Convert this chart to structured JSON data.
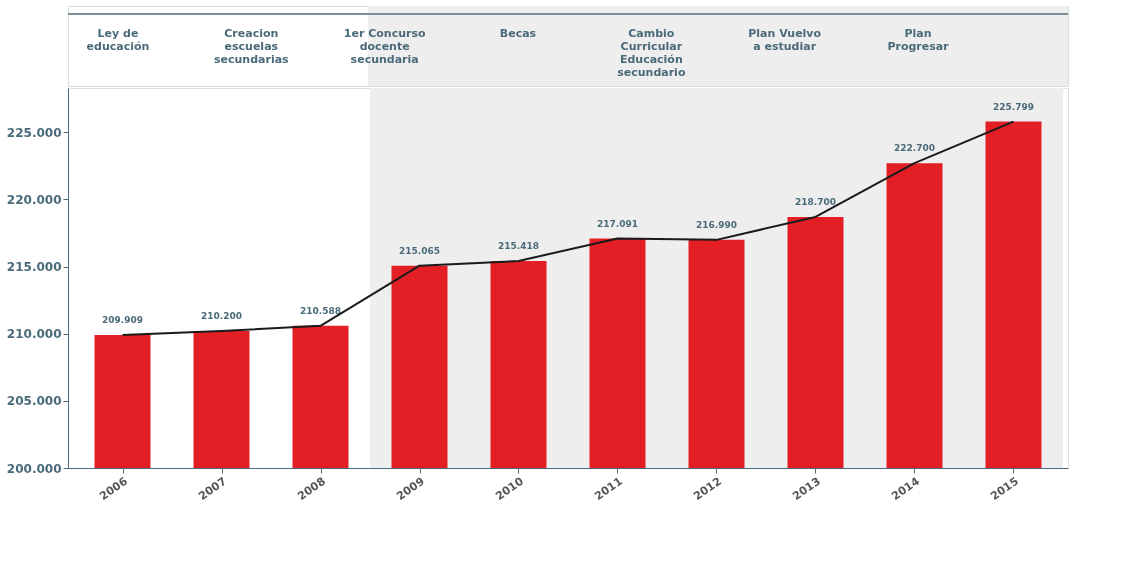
{
  "chart_data": {
    "type": "bar",
    "categories": [
      "2006",
      "2007",
      "2008",
      "2009",
      "2010",
      "2011",
      "2012",
      "2013",
      "2014",
      "2015"
    ],
    "series": [
      {
        "color": "#e31e24",
        "values": [
          209909,
          210200,
          210588,
          215065,
          215418,
          217091,
          216990,
          218700,
          222700,
          225799
        ],
        "value_labels": [
          "209.909",
          "210.200",
          "210.588",
          "215.065",
          "215.418",
          "217.091",
          "216.990",
          "218.700",
          "222.700",
          "225.799"
        ]
      },
      {
        "type": "line",
        "color": "#1a1a1a",
        "values": [
          209909,
          210200,
          210588,
          215065,
          215418,
          217091,
          216990,
          218700,
          222700,
          225799
        ]
      }
    ],
    "ylim": [
      200000,
      228300
    ],
    "yticks": [
      {
        "value": 200000,
        "label": "200.000"
      },
      {
        "value": 205000,
        "label": "205.000"
      },
      {
        "value": 210000,
        "label": "210.000"
      },
      {
        "value": 215000,
        "label": "215.000"
      },
      {
        "value": 220000,
        "label": "220.000"
      },
      {
        "value": 225000,
        "label": "225.000"
      }
    ],
    "bands": [
      {
        "axis": "x",
        "from": "2009",
        "to": "2015",
        "color": "#eeeeee"
      }
    ],
    "annotations": [
      "Ley de educación",
      "Creacion escuelas secundarias",
      "1er Concurso docente secundaria",
      "Becas",
      "Cambio Curricular Educación secundario",
      "Plan Vuelvo a estudiar",
      "Plan Progresar"
    ],
    "grid": false
  }
}
